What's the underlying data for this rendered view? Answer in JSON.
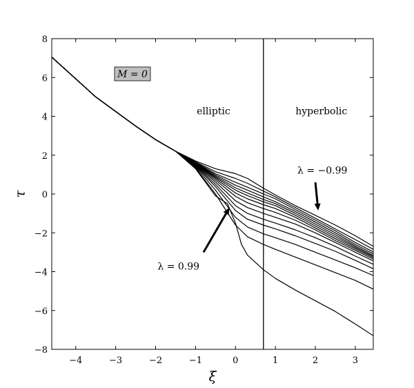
{
  "chart_data": {
    "type": "line",
    "title": "",
    "xlabel": "ξ",
    "ylabel": "τ",
    "xlim": [
      -4.6,
      3.45
    ],
    "ylim": [
      -8,
      8
    ],
    "grid": false,
    "x_ticks": [
      {
        "value": -4,
        "label": "−4"
      },
      {
        "value": -3,
        "label": "−3"
      },
      {
        "value": -2,
        "label": "−2"
      },
      {
        "value": -1,
        "label": "−1"
      },
      {
        "value": 0,
        "label": "0"
      },
      {
        "value": 1,
        "label": "1"
      },
      {
        "value": 2,
        "label": "2"
      },
      {
        "value": 3,
        "label": "3"
      }
    ],
    "y_ticks": [
      {
        "value": -8,
        "label": "−8"
      },
      {
        "value": -6,
        "label": "−6"
      },
      {
        "value": -4,
        "label": "−4"
      },
      {
        "value": -2,
        "label": "−2"
      },
      {
        "value": 0,
        "label": "0"
      },
      {
        "value": 2,
        "label": "2"
      },
      {
        "value": 4,
        "label": "4"
      },
      {
        "value": 6,
        "label": "6"
      },
      {
        "value": 8,
        "label": "8"
      }
    ],
    "vertical_line": {
      "x": 0.7
    },
    "boxed_label": "M = 0",
    "region_labels": [
      {
        "text": "elliptic",
        "x": -0.55,
        "y": 4.1
      },
      {
        "text": "hyperbolic",
        "x": 2.15,
        "y": 4.1
      }
    ],
    "annotations": [
      {
        "text": "λ = −0.99",
        "text_x": 1.55,
        "text_y": 1.05,
        "arrow_from": [
          2.0,
          0.6
        ],
        "arrow_to": [
          2.07,
          -0.85
        ]
      },
      {
        "text": "λ = 0.99",
        "text_x": -1.95,
        "text_y": -3.9,
        "arrow_from": [
          -0.8,
          -3.0
        ],
        "arrow_to": [
          -0.15,
          -0.7
        ]
      }
    ],
    "series": [
      {
        "values": [
          [
            -4.6,
            7.05
          ],
          [
            -3.5,
            5.0
          ],
          [
            -2.5,
            3.5
          ],
          [
            -2.0,
            2.8
          ],
          [
            -1.5,
            2.2
          ],
          [
            -1.0,
            1.7
          ],
          [
            -0.5,
            1.3
          ],
          [
            0.0,
            1.05
          ],
          [
            0.3,
            0.8
          ],
          [
            0.7,
            0.3
          ],
          [
            1.0,
            -0.05
          ],
          [
            1.5,
            -0.6
          ],
          [
            2.0,
            -1.1
          ],
          [
            2.5,
            -1.6
          ],
          [
            3.0,
            -2.15
          ],
          [
            3.45,
            -2.7
          ]
        ]
      },
      {
        "values": [
          [
            -4.6,
            7.05
          ],
          [
            -3.5,
            5.0
          ],
          [
            -2.5,
            3.5
          ],
          [
            -2.0,
            2.8
          ],
          [
            -1.5,
            2.2
          ],
          [
            -1.0,
            1.65
          ],
          [
            -0.5,
            1.15
          ],
          [
            0.0,
            0.8
          ],
          [
            0.3,
            0.55
          ],
          [
            0.7,
            0.15
          ],
          [
            1.0,
            -0.15
          ],
          [
            1.5,
            -0.7
          ],
          [
            2.0,
            -1.25
          ],
          [
            2.5,
            -1.8
          ],
          [
            3.0,
            -2.35
          ],
          [
            3.45,
            -2.85
          ]
        ]
      },
      {
        "values": [
          [
            -4.6,
            7.05
          ],
          [
            -3.5,
            5.0
          ],
          [
            -2.5,
            3.5
          ],
          [
            -2.0,
            2.8
          ],
          [
            -1.5,
            2.2
          ],
          [
            -1.0,
            1.62
          ],
          [
            -0.5,
            1.05
          ],
          [
            0.0,
            0.6
          ],
          [
            0.3,
            0.35
          ],
          [
            0.7,
            0.0
          ],
          [
            1.0,
            -0.25
          ],
          [
            1.5,
            -0.8
          ],
          [
            2.0,
            -1.35
          ],
          [
            2.5,
            -1.9
          ],
          [
            3.0,
            -2.5
          ],
          [
            3.45,
            -2.98
          ]
        ]
      },
      {
        "values": [
          [
            -4.6,
            7.05
          ],
          [
            -3.5,
            5.0
          ],
          [
            -2.5,
            3.5
          ],
          [
            -2.0,
            2.8
          ],
          [
            -1.5,
            2.2
          ],
          [
            -1.0,
            1.6
          ],
          [
            -0.5,
            0.98
          ],
          [
            0.0,
            0.45
          ],
          [
            0.3,
            0.2
          ],
          [
            0.7,
            -0.15
          ],
          [
            1.0,
            -0.4
          ],
          [
            1.5,
            -0.9
          ],
          [
            2.0,
            -1.45
          ],
          [
            2.5,
            -2.0
          ],
          [
            3.0,
            -2.6
          ],
          [
            3.45,
            -3.08
          ]
        ]
      },
      {
        "values": [
          [
            -4.6,
            7.05
          ],
          [
            -3.5,
            5.0
          ],
          [
            -2.5,
            3.5
          ],
          [
            -2.0,
            2.8
          ],
          [
            -1.5,
            2.2
          ],
          [
            -1.0,
            1.58
          ],
          [
            -0.5,
            0.92
          ],
          [
            0.0,
            0.32
          ],
          [
            0.3,
            0.05
          ],
          [
            0.7,
            -0.28
          ],
          [
            1.0,
            -0.5
          ],
          [
            1.5,
            -1.0
          ],
          [
            2.0,
            -1.55
          ],
          [
            2.5,
            -2.1
          ],
          [
            3.0,
            -2.68
          ],
          [
            3.45,
            -3.16
          ]
        ]
      },
      {
        "values": [
          [
            -4.6,
            7.05
          ],
          [
            -3.5,
            5.0
          ],
          [
            -2.5,
            3.5
          ],
          [
            -2.0,
            2.8
          ],
          [
            -1.5,
            2.2
          ],
          [
            -1.0,
            1.56
          ],
          [
            -0.5,
            0.86
          ],
          [
            0.0,
            0.2
          ],
          [
            0.3,
            -0.08
          ],
          [
            0.7,
            -0.4
          ],
          [
            1.0,
            -0.6
          ],
          [
            1.5,
            -1.1
          ],
          [
            2.0,
            -1.65
          ],
          [
            2.5,
            -2.2
          ],
          [
            3.0,
            -2.75
          ],
          [
            3.45,
            -3.22
          ]
        ]
      },
      {
        "values": [
          [
            -4.6,
            7.05
          ],
          [
            -3.5,
            5.0
          ],
          [
            -2.5,
            3.5
          ],
          [
            -2.0,
            2.8
          ],
          [
            -1.5,
            2.2
          ],
          [
            -1.0,
            1.54
          ],
          [
            -0.5,
            0.8
          ],
          [
            0.0,
            0.05
          ],
          [
            0.3,
            -0.25
          ],
          [
            0.7,
            -0.55
          ],
          [
            1.0,
            -0.75
          ],
          [
            1.5,
            -1.2
          ],
          [
            2.0,
            -1.75
          ],
          [
            2.5,
            -2.3
          ],
          [
            3.0,
            -2.82
          ],
          [
            3.45,
            -3.28
          ]
        ]
      },
      {
        "values": [
          [
            -4.6,
            7.05
          ],
          [
            -3.5,
            5.0
          ],
          [
            -2.5,
            3.5
          ],
          [
            -2.0,
            2.8
          ],
          [
            -1.5,
            2.2
          ],
          [
            -1.0,
            1.52
          ],
          [
            -0.5,
            0.72
          ],
          [
            0.0,
            -0.12
          ],
          [
            0.3,
            -0.45
          ],
          [
            0.7,
            -0.75
          ],
          [
            1.0,
            -0.95
          ],
          [
            1.5,
            -1.35
          ],
          [
            2.0,
            -1.85
          ],
          [
            2.5,
            -2.4
          ],
          [
            3.0,
            -2.9
          ],
          [
            3.45,
            -3.36
          ]
        ]
      },
      {
        "values": [
          [
            -4.6,
            7.05
          ],
          [
            -3.5,
            5.0
          ],
          [
            -2.5,
            3.5
          ],
          [
            -2.0,
            2.8
          ],
          [
            -1.5,
            2.2
          ],
          [
            -1.0,
            1.5
          ],
          [
            -0.5,
            0.62
          ],
          [
            0.0,
            -0.35
          ],
          [
            0.3,
            -0.7
          ],
          [
            0.7,
            -1.0
          ],
          [
            1.0,
            -1.2
          ],
          [
            1.5,
            -1.55
          ],
          [
            2.0,
            -2.0
          ],
          [
            2.5,
            -2.5
          ],
          [
            3.0,
            -3.0
          ],
          [
            3.45,
            -3.45
          ]
        ]
      },
      {
        "values": [
          [
            -4.6,
            7.05
          ],
          [
            -3.5,
            5.0
          ],
          [
            -2.5,
            3.5
          ],
          [
            -2.0,
            2.8
          ],
          [
            -1.5,
            2.2
          ],
          [
            -1.0,
            1.47
          ],
          [
            -0.5,
            0.5
          ],
          [
            0.0,
            -0.6
          ],
          [
            0.3,
            -1.0
          ],
          [
            0.7,
            -1.3
          ],
          [
            1.0,
            -1.5
          ],
          [
            1.5,
            -1.85
          ],
          [
            2.0,
            -2.25
          ],
          [
            2.5,
            -2.7
          ],
          [
            3.0,
            -3.2
          ],
          [
            3.45,
            -3.62
          ]
        ]
      },
      {
        "values": [
          [
            -4.6,
            7.05
          ],
          [
            -3.5,
            5.0
          ],
          [
            -2.5,
            3.5
          ],
          [
            -2.0,
            2.8
          ],
          [
            -1.5,
            2.2
          ],
          [
            -1.0,
            1.44
          ],
          [
            -0.5,
            0.38
          ],
          [
            0.0,
            -0.85
          ],
          [
            0.3,
            -1.3
          ],
          [
            0.7,
            -1.6
          ],
          [
            1.0,
            -1.8
          ],
          [
            1.5,
            -2.15
          ],
          [
            2.0,
            -2.55
          ],
          [
            2.5,
            -2.95
          ],
          [
            3.0,
            -3.42
          ],
          [
            3.45,
            -3.85
          ]
        ]
      },
      {
        "values": [
          [
            -4.6,
            7.05
          ],
          [
            -3.5,
            5.0
          ],
          [
            -2.5,
            3.5
          ],
          [
            -2.0,
            2.8
          ],
          [
            -1.5,
            2.2
          ],
          [
            -1.0,
            1.4
          ],
          [
            -0.5,
            0.2
          ],
          [
            0.0,
            -1.2
          ],
          [
            0.3,
            -1.7
          ],
          [
            0.7,
            -2.05
          ],
          [
            1.0,
            -2.25
          ],
          [
            1.5,
            -2.6
          ],
          [
            2.0,
            -3.0
          ],
          [
            2.5,
            -3.4
          ],
          [
            3.0,
            -3.8
          ],
          [
            3.45,
            -4.2
          ]
        ]
      },
      {
        "values": [
          [
            -4.6,
            7.05
          ],
          [
            -3.5,
            5.0
          ],
          [
            -2.5,
            3.5
          ],
          [
            -2.0,
            2.8
          ],
          [
            -1.5,
            2.2
          ],
          [
            -1.0,
            1.35
          ],
          [
            -0.5,
            0.0
          ],
          [
            0.0,
            -1.6
          ],
          [
            0.3,
            -2.2
          ],
          [
            0.7,
            -2.6
          ],
          [
            1.0,
            -2.85
          ],
          [
            1.5,
            -3.25
          ],
          [
            2.0,
            -3.65
          ],
          [
            2.5,
            -4.05
          ],
          [
            3.0,
            -4.45
          ],
          [
            3.45,
            -4.9
          ]
        ]
      },
      {
        "values": [
          [
            -4.6,
            7.05
          ],
          [
            -3.5,
            5.0
          ],
          [
            -2.5,
            3.5
          ],
          [
            -2.0,
            2.8
          ],
          [
            -1.5,
            2.2
          ],
          [
            -1.0,
            1.3
          ],
          [
            -0.5,
            -0.1
          ],
          [
            -0.2,
            -0.5
          ],
          [
            0.0,
            -1.5
          ],
          [
            0.15,
            -2.6
          ],
          [
            0.3,
            -3.15
          ],
          [
            0.7,
            -3.9
          ],
          [
            1.0,
            -4.35
          ],
          [
            1.5,
            -4.95
          ],
          [
            2.0,
            -5.5
          ],
          [
            2.5,
            -6.05
          ],
          [
            3.0,
            -6.7
          ],
          [
            3.45,
            -7.3
          ]
        ]
      }
    ]
  }
}
